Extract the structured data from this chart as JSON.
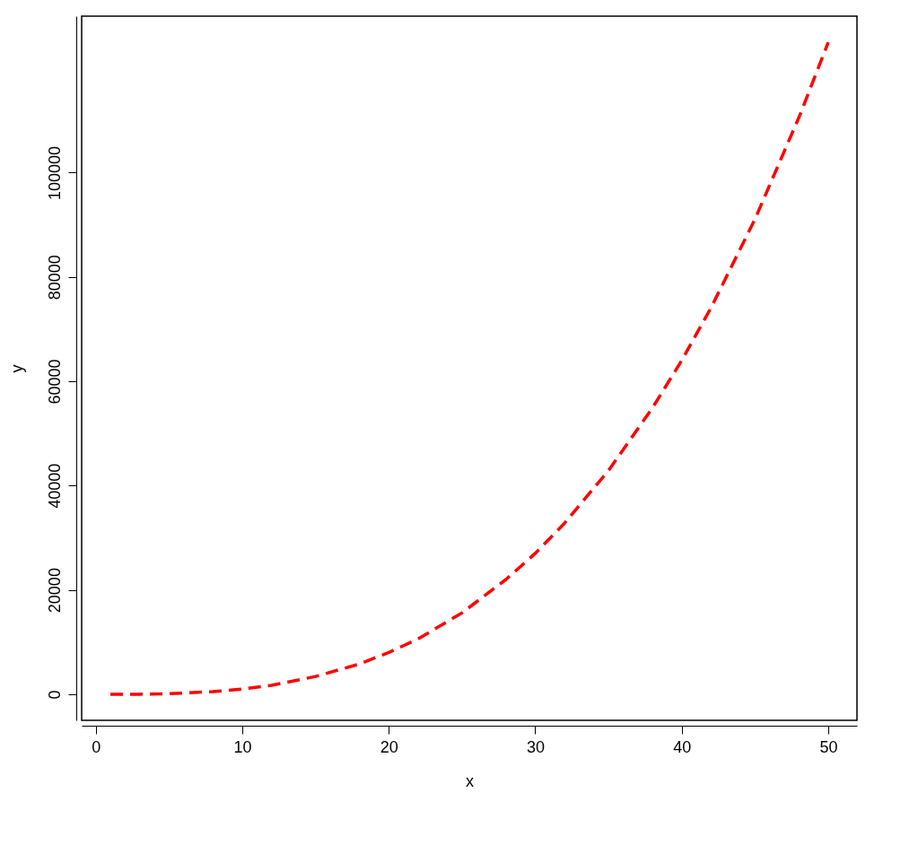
{
  "chart_data": {
    "type": "line",
    "xlabel": "x",
    "ylabel": "y",
    "x": [
      1,
      3,
      5,
      8,
      10,
      12,
      15,
      18,
      20,
      22,
      25,
      28,
      30,
      32,
      35,
      38,
      40,
      42,
      45,
      48,
      50
    ],
    "series": [
      {
        "color": "#ff0000",
        "line_style": "dashed",
        "values": [
          0,
          0,
          100,
          500,
          1000,
          1700,
          3400,
          5800,
          8000,
          10600,
          15600,
          22000,
          27000,
          32800,
          42900,
          54900,
          64000,
          74100,
          91100,
          110600,
          125000
        ]
      }
    ],
    "xlim": [
      -0.96,
      51.96
    ],
    "ylim": [
      -5000,
      130000
    ],
    "xticks": [
      0,
      10,
      20,
      30,
      40,
      50
    ],
    "yticks": [
      0,
      20000,
      40000,
      60000,
      80000,
      100000
    ]
  }
}
